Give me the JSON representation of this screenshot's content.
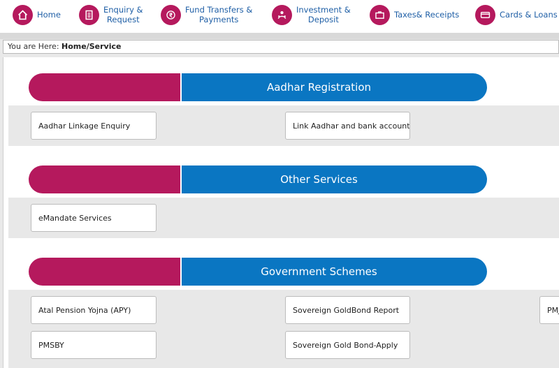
{
  "nav": {
    "items": [
      {
        "label": "Home",
        "icon": "home-icon"
      },
      {
        "label": "Enquiry &\nRequest",
        "icon": "document-icon"
      },
      {
        "label": "Fund Transfers &\nPayments",
        "icon": "rupee-transfer-icon"
      },
      {
        "label": "Investment &\nDeposit",
        "icon": "investment-icon"
      },
      {
        "label": "Taxes& Receipts",
        "icon": "briefcase-icon"
      },
      {
        "label": "Cards & Loans",
        "icon": "card-icon"
      }
    ]
  },
  "breadcrumb": {
    "prefix": "You are Here:",
    "path": "Home/Service"
  },
  "sections": [
    {
      "title": "Aadhar Registration",
      "buttons": [
        "Aadhar Linkage Enquiry",
        "Link Aadhar and bank account"
      ]
    },
    {
      "title": "Other Services",
      "buttons": [
        "eMandate Services"
      ]
    },
    {
      "title": "Government Schemes",
      "buttons": [
        "Atal Pension Yojna (APY)",
        "Sovereign GoldBond Report",
        "PMJ",
        "PMSBY",
        "Sovereign Gold Bond-Apply"
      ]
    }
  ],
  "colors": {
    "accent_magenta": "#b5195d",
    "accent_blue": "#0a76c2",
    "nav_text": "#1f5fa6"
  }
}
